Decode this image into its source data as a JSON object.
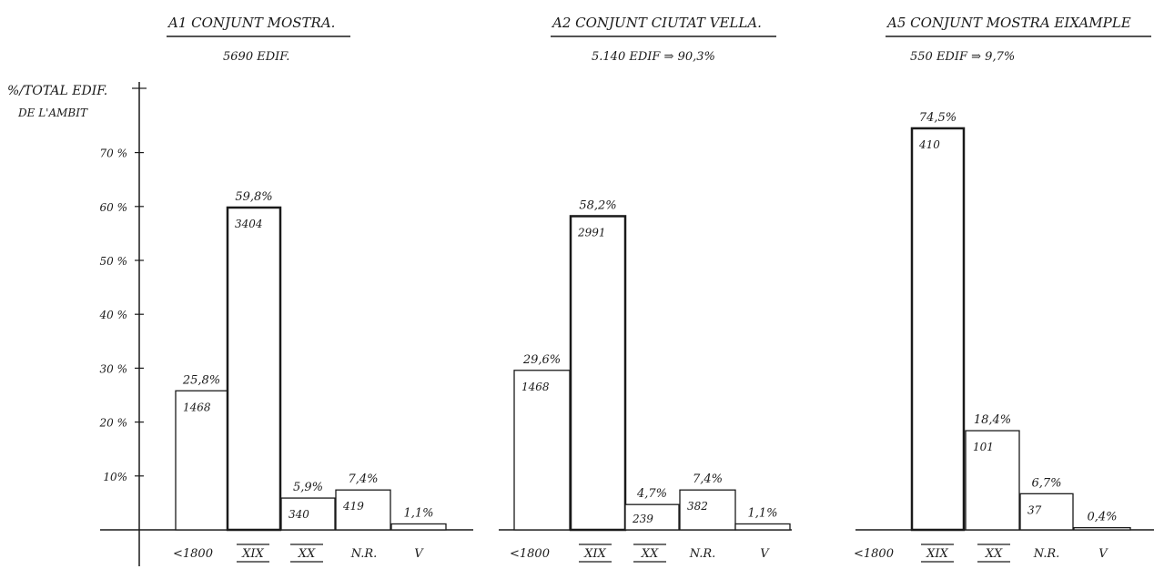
{
  "axis": {
    "label_line1": "%/TOTAL EDIF.",
    "label_line2": "DE L'AMBIT",
    "ticks": [
      {
        "value": 70,
        "label": "70 %"
      },
      {
        "value": 60,
        "label": "60 %"
      },
      {
        "value": 50,
        "label": "50 %"
      },
      {
        "value": 40,
        "label": "40 %"
      },
      {
        "value": 30,
        "label": "30 %"
      },
      {
        "value": 20,
        "label": "20 %"
      },
      {
        "value": 10,
        "label": "10%"
      }
    ]
  },
  "chart_data": [
    {
      "type": "bar",
      "title": "A1 CONJUNT MOSTRA.",
      "subtitle": "5690 EDIF.",
      "ylim": [
        0,
        80
      ],
      "grid": false,
      "categories": [
        "<1800",
        "XIX",
        "XX",
        "N.R.",
        "V"
      ],
      "values": [
        25.8,
        59.8,
        5.9,
        7.4,
        1.1
      ],
      "percent_labels": [
        "25,8%",
        "59,8%",
        "5,9%",
        "7,4%",
        "1,1%"
      ],
      "counts": [
        "1468",
        "3404",
        "340",
        "419",
        ""
      ]
    },
    {
      "type": "bar",
      "title": "A2 CONJUNT CIUTAT VELLA.",
      "subtitle": "5.140 EDIF ⇒ 90,3%",
      "ylim": [
        0,
        80
      ],
      "grid": false,
      "categories": [
        "<1800",
        "XIX",
        "XX",
        "N.R.",
        "V"
      ],
      "values": [
        29.6,
        58.2,
        4.7,
        7.4,
        1.1
      ],
      "percent_labels": [
        "29,6%",
        "58,2%",
        "4,7%",
        "7,4%",
        "1,1%"
      ],
      "counts": [
        "1468",
        "2991",
        "239",
        "382",
        ""
      ]
    },
    {
      "type": "bar",
      "title": "A5 CONJUNT MOSTRA EIXAMPLE",
      "subtitle": "550 EDIF ⇒ 9,7%",
      "ylim": [
        0,
        80
      ],
      "grid": false,
      "categories": [
        "<1800",
        "XIX",
        "XX",
        "N.R.",
        "V"
      ],
      "values": [
        0,
        74.5,
        18.4,
        6.7,
        0.4
      ],
      "percent_labels": [
        "",
        "74,5%",
        "18,4%",
        "6,7%",
        "0,4%"
      ],
      "counts": [
        "",
        "410",
        "101",
        "37",
        ""
      ]
    }
  ]
}
